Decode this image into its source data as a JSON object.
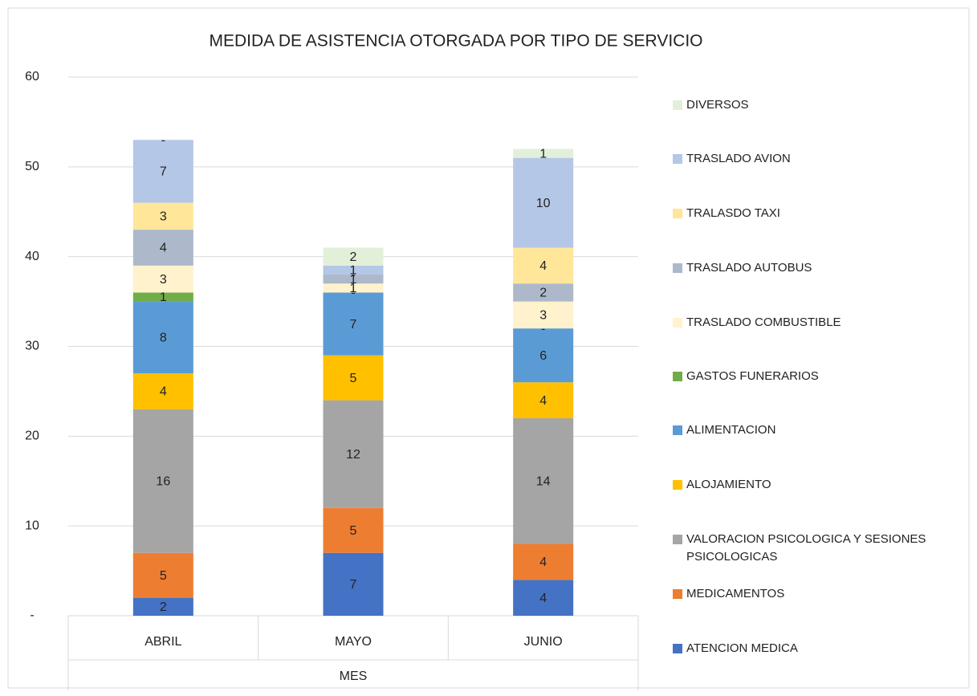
{
  "chart_data": {
    "type": "stacked_bar",
    "title": "MEDIDA DE ASISTENCIA OTORGADA POR TIPO DE SERVICIO",
    "x_label": "MES",
    "categories": [
      "ABRIL",
      "MAYO",
      "JUNIO"
    ],
    "ylim": [
      0,
      60
    ],
    "yticks": [
      {
        "value": 0,
        "label": "-"
      },
      10,
      20,
      30,
      40,
      50,
      60
    ],
    "grid": true,
    "legend": "right",
    "series": [
      {
        "name": "ATENCION MEDICA",
        "color": "#4472c4",
        "values": [
          2,
          7,
          4
        ]
      },
      {
        "name": "MEDICAMENTOS",
        "color": "#ed7d31",
        "values": [
          5,
          5,
          4
        ]
      },
      {
        "name": "VALORACION PSICOLOGICA Y SESIONES PSICOLOGICAS",
        "color": "#a5a5a5",
        "values": [
          16,
          12,
          14
        ]
      },
      {
        "name": "ALOJAMIENTO",
        "color": "#ffc000",
        "values": [
          4,
          5,
          4
        ]
      },
      {
        "name": "ALIMENTACION",
        "color": "#5b9bd5",
        "values": [
          8,
          7,
          6
        ]
      },
      {
        "name": "GASTOS FUNERARIOS",
        "color": "#70ad47",
        "values": [
          1,
          0,
          0
        ],
        "value_labels": [
          "1",
          "-",
          "-"
        ]
      },
      {
        "name": "TRASLADO COMBUSTIBLE",
        "color": "#fff2cc",
        "values": [
          3,
          1,
          3
        ]
      },
      {
        "name": "TRASLADO AUTOBUS",
        "color": "#adb9ca",
        "values": [
          4,
          1,
          2
        ]
      },
      {
        "name": "TRALASDO TAXI",
        "color": "#ffe699",
        "values": [
          3,
          0,
          4
        ],
        "value_labels": [
          "3",
          "-",
          "4"
        ]
      },
      {
        "name": "TRASLADO AVION",
        "color": "#b4c7e7",
        "values": [
          7,
          1,
          10
        ]
      },
      {
        "name": "DIVERSOS",
        "color": "#e2f0d9",
        "values": [
          0,
          2,
          1
        ],
        "value_labels": [
          "-",
          "2",
          "1"
        ]
      }
    ]
  }
}
